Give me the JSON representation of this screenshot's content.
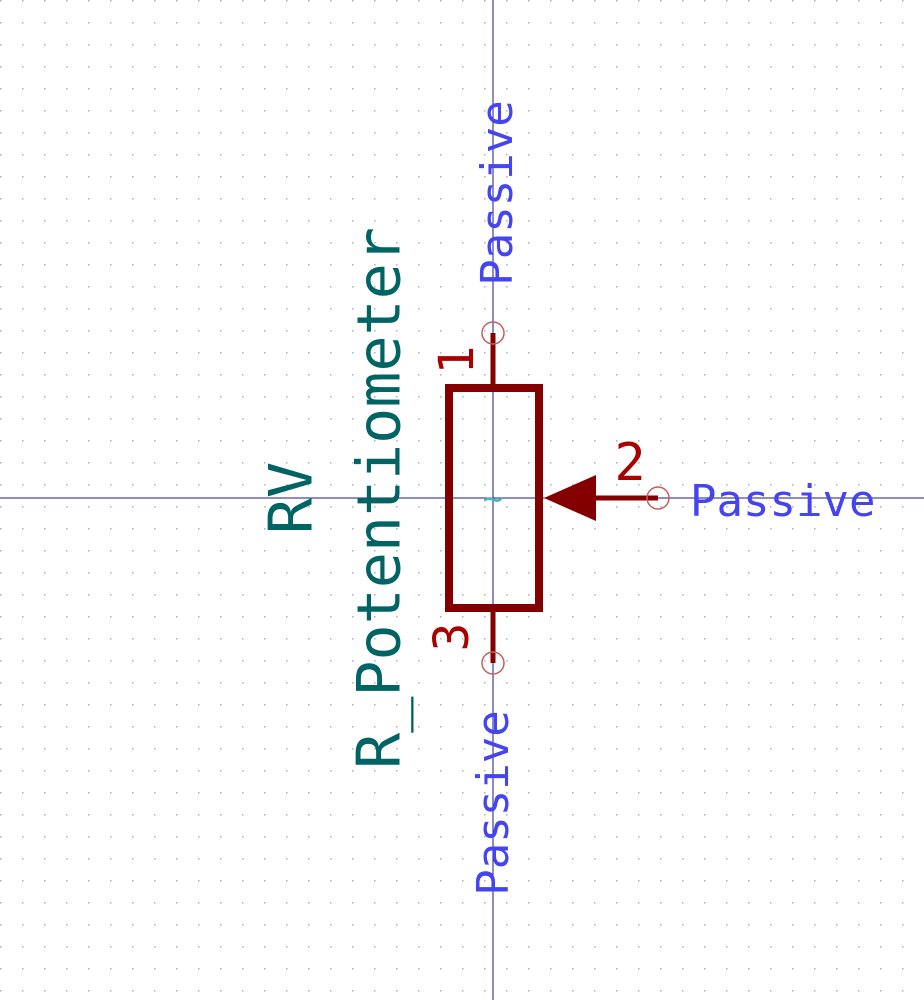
{
  "symbol": {
    "reference": "RV",
    "value": "R_Potentiometer",
    "center_glyph": "~"
  },
  "pins": [
    {
      "number": "1",
      "type": "Passive"
    },
    {
      "number": "2",
      "type": "Passive"
    },
    {
      "number": "3",
      "type": "Passive"
    }
  ],
  "colors": {
    "body": "#840000",
    "pin_number": "#a90000",
    "pin_type": "#4444f0",
    "field_text": "#006464",
    "pin_end": "#c06060",
    "grid_dot": "#b8b8b8",
    "axis": "#1a1a8c",
    "background": "#ffffff"
  },
  "grid": {
    "visible": true
  }
}
